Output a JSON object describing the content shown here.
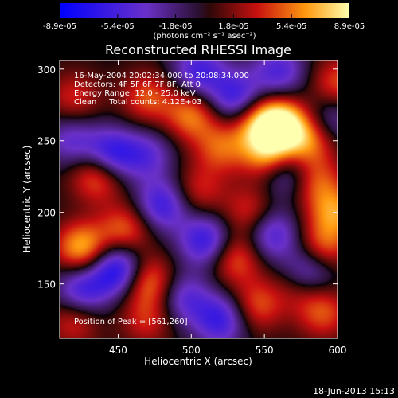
{
  "chart_data": {
    "type": "heatmap",
    "title": "Reconstructed RHESSI Image",
    "xlabel": "Heliocentric X (arcsec)",
    "ylabel": "Heliocentric Y (arcsec)",
    "xlim": [
      410,
      600
    ],
    "ylim": [
      112,
      306
    ],
    "x_ticks": [
      450,
      500,
      550,
      600
    ],
    "y_ticks": [
      150,
      200,
      250,
      300
    ],
    "colorbar": {
      "ticks": [
        "-8.9e-05",
        "-5.4e-05",
        "-1.8e-05",
        "1.8e-05",
        "5.4e-05",
        "8.9e-05"
      ],
      "range": [
        -8.9e-05,
        8.9e-05
      ],
      "unit_label": "(photons cm⁻² s⁻¹ asec⁻²)"
    },
    "annotations": [
      "16-May-2004 20:02:34.000 to 20:08:34.000",
      "Detectors: 4F 5F 6F 7F 8F, Att 0",
      "Energy Range: 12.0 - 25.0 keV",
      "Clean     Total counts: 4.12E+03"
    ],
    "peak_label": "Position of Peak = [561,260]",
    "peak": {
      "x": 561,
      "y": 260
    },
    "blobs": [
      {
        "x": 561,
        "y": 262,
        "v": 8.9e-05
      },
      {
        "x": 553,
        "y": 240,
        "v": 6.5e-05
      },
      {
        "x": 580,
        "y": 250,
        "v": 5.5e-05
      },
      {
        "x": 545,
        "y": 262,
        "v": 5e-05
      },
      {
        "x": 598,
        "y": 200,
        "v": 5.5e-05
      },
      {
        "x": 585,
        "y": 222,
        "v": 4.5e-05
      },
      {
        "x": 425,
        "y": 175,
        "v": 7e-05
      },
      {
        "x": 436,
        "y": 226,
        "v": 6e-05
      },
      {
        "x": 455,
        "y": 188,
        "v": 5e-05
      },
      {
        "x": 470,
        "y": 152,
        "v": 6e-05
      },
      {
        "x": 500,
        "y": 268,
        "v": 5.5e-05
      },
      {
        "x": 470,
        "y": 280,
        "v": 4.5e-05
      },
      {
        "x": 520,
        "y": 245,
        "v": 4.5e-05
      },
      {
        "x": 505,
        "y": 215,
        "v": 3.5e-05
      },
      {
        "x": 540,
        "y": 200,
        "v": 4e-05
      },
      {
        "x": 530,
        "y": 168,
        "v": 5e-05
      },
      {
        "x": 545,
        "y": 135,
        "v": 4.5e-05
      },
      {
        "x": 575,
        "y": 150,
        "v": 4e-05
      },
      {
        "x": 590,
        "y": 175,
        "v": 5e-05
      },
      {
        "x": 420,
        "y": 125,
        "v": 4e-05
      },
      {
        "x": 470,
        "y": 125,
        "v": 3.5e-05
      },
      {
        "x": 590,
        "y": 130,
        "v": 4.5e-05
      },
      {
        "x": 600,
        "y": 290,
        "v": 4.5e-05
      },
      {
        "x": 420,
        "y": 280,
        "v": 3.5e-05
      },
      {
        "x": 445,
        "y": 240,
        "v": -7e-05
      },
      {
        "x": 450,
        "y": 160,
        "v": -8e-05
      },
      {
        "x": 480,
        "y": 205,
        "v": -6e-05
      },
      {
        "x": 530,
        "y": 280,
        "v": -6e-05
      },
      {
        "x": 510,
        "y": 180,
        "v": -6.5e-05
      },
      {
        "x": 555,
        "y": 185,
        "v": -5.5e-05
      },
      {
        "x": 580,
        "y": 158,
        "v": -7e-05
      },
      {
        "x": 520,
        "y": 125,
        "v": -6e-05
      },
      {
        "x": 565,
        "y": 228,
        "v": -5e-05
      },
      {
        "x": 425,
        "y": 145,
        "v": -6e-05
      },
      {
        "x": 505,
        "y": 298,
        "v": -5.5e-05
      },
      {
        "x": 470,
        "y": 240,
        "v": -4e-05
      },
      {
        "x": 560,
        "y": 298,
        "v": -5e-05
      },
      {
        "x": 418,
        "y": 250,
        "v": -4e-05
      },
      {
        "x": 495,
        "y": 140,
        "v": -4.5e-05
      },
      {
        "x": 595,
        "y": 265,
        "v": -3.5e-05
      }
    ]
  },
  "footer": {
    "timestamp": "18-Jun-2013 15:13"
  }
}
